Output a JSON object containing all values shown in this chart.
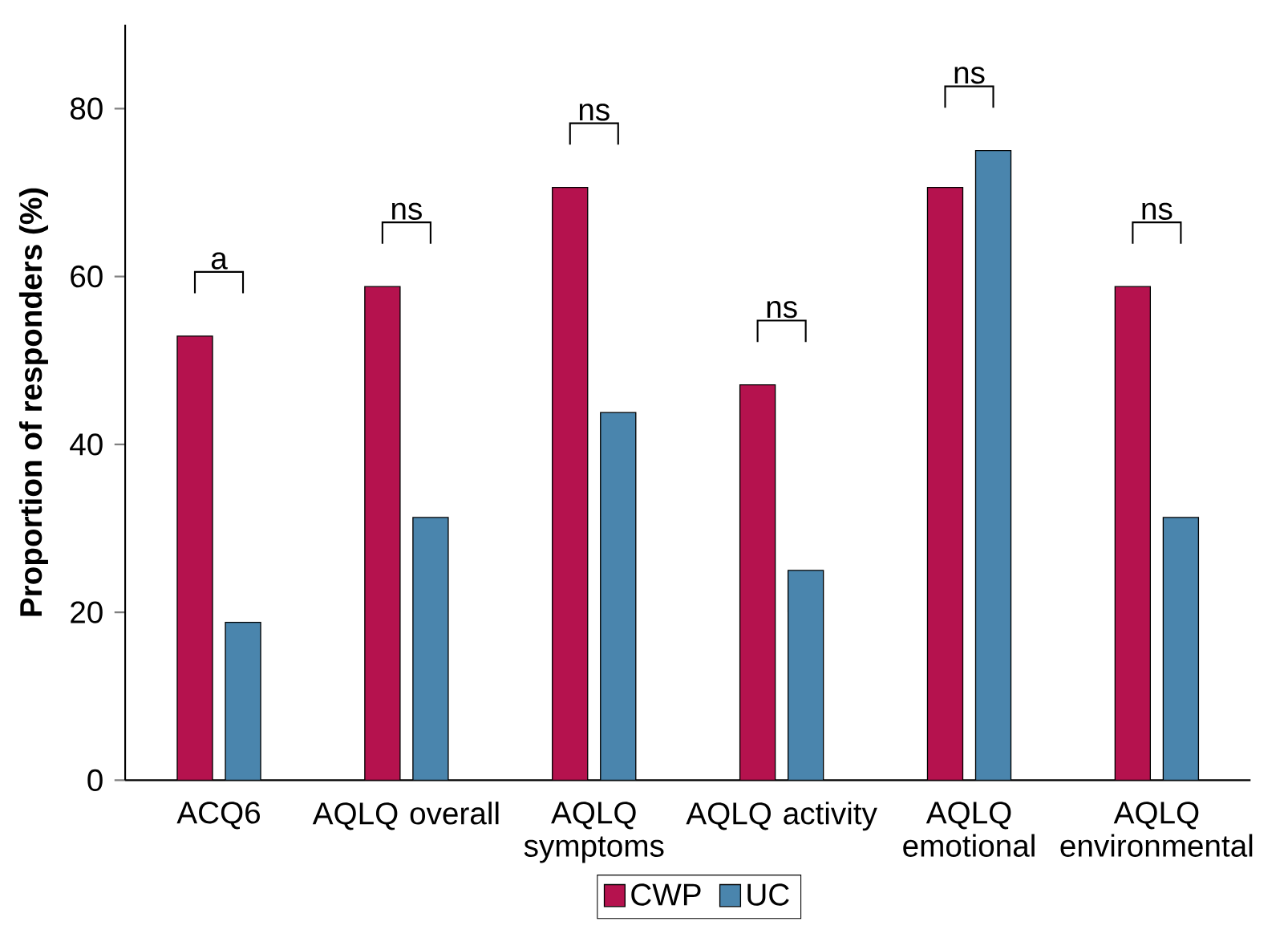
{
  "chart_data": {
    "type": "bar",
    "ylabel": "Proportion of responders (%)",
    "categories": [
      "ACQ6",
      "AQLQ overall",
      "AQLQ symptoms",
      "AQLQ activity",
      "AQLQ emotional",
      "AQLQ environmental"
    ],
    "series": [
      {
        "name": "CWP",
        "color": "#b5124e",
        "values": [
          52.9,
          58.8,
          70.6,
          47.1,
          70.6,
          58.8
        ]
      },
      {
        "name": "UC",
        "color": "#4a85ad",
        "values": [
          18.8,
          31.3,
          43.8,
          25.0,
          75.0,
          31.3
        ]
      }
    ],
    "ylim": [
      0,
      90
    ],
    "yticks": [
      0,
      20,
      40,
      60,
      80
    ],
    "legend": "bottom",
    "grid": false,
    "annotations": [
      "a",
      "ns",
      "ns",
      "ns",
      "ns",
      "ns"
    ]
  }
}
